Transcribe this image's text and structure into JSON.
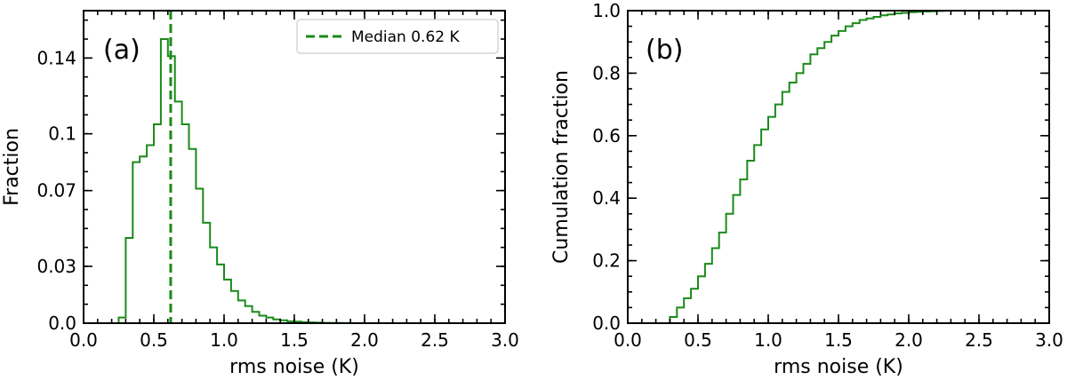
{
  "colors": {
    "series": "#1a8a1a",
    "frame": "#000000",
    "legend_border": "#cccccc"
  },
  "chart_data": [
    {
      "type": "histogram",
      "panel_label": "(a)",
      "xlabel": "rms noise (K)",
      "ylabel": "Fraction",
      "xlim": [
        0.0,
        3.0
      ],
      "ylim": [
        0.0,
        0.165
      ],
      "xticks": [
        0.0,
        0.5,
        1.0,
        1.5,
        2.0,
        2.5,
        3.0
      ],
      "xtick_labels": [
        "0.0",
        "0.5",
        "1.0",
        "1.5",
        "2.0",
        "2.5",
        "3.0"
      ],
      "yticks": [
        0.0,
        0.03,
        0.07,
        0.1,
        0.14
      ],
      "ytick_labels": [
        "0.0",
        "0.03",
        "0.07",
        "0.1",
        "0.14"
      ],
      "bin_width": 0.05,
      "bins_start": 0.25,
      "series": [
        {
          "values": [
            0.003,
            0.045,
            0.085,
            0.088,
            0.094,
            0.105,
            0.15,
            0.141,
            0.117,
            0.105,
            0.092,
            0.071,
            0.053,
            0.04,
            0.031,
            0.023,
            0.017,
            0.012,
            0.009,
            0.006,
            0.004,
            0.003,
            0.002,
            0.0015,
            0.001,
            0.0008,
            0.0005,
            0.0004,
            0.0003,
            0.0002,
            0.0001,
            0.0001,
            5e-05
          ]
        }
      ],
      "reference_lines": [
        {
          "x": 0.62,
          "label": "Median 0.62 K",
          "style": "dashed"
        }
      ],
      "legend": {
        "entries": [
          "Median 0.62 K"
        ],
        "position": "top-right"
      }
    },
    {
      "type": "histogram",
      "cumulative": true,
      "panel_label": "(b)",
      "xlabel": "rms noise (K)",
      "ylabel": "Cumulation fraction",
      "xlim": [
        0.0,
        3.0
      ],
      "ylim": [
        0.0,
        1.0
      ],
      "xticks": [
        0.0,
        0.5,
        1.0,
        1.5,
        2.0,
        2.5,
        3.0
      ],
      "xtick_labels": [
        "0.0",
        "0.5",
        "1.0",
        "1.5",
        "2.0",
        "2.5",
        "3.0"
      ],
      "yticks": [
        0.0,
        0.2,
        0.4,
        0.6,
        0.8,
        1.0
      ],
      "ytick_labels": [
        "0.0",
        "0.2",
        "0.4",
        "0.6",
        "0.8",
        "1.0"
      ],
      "bin_width": 0.05,
      "bins_start": 0.25,
      "series": [
        {
          "values": [
            0.0,
            0.02,
            0.05,
            0.08,
            0.11,
            0.15,
            0.19,
            0.24,
            0.29,
            0.35,
            0.41,
            0.46,
            0.52,
            0.57,
            0.62,
            0.66,
            0.7,
            0.74,
            0.77,
            0.8,
            0.83,
            0.86,
            0.88,
            0.9,
            0.92,
            0.935,
            0.95,
            0.96,
            0.97,
            0.975,
            0.98,
            0.985,
            0.988,
            0.991,
            0.993,
            0.995,
            0.996,
            0.997,
            0.998,
            0.999,
            1.0,
            1.0,
            1.0,
            1.0,
            1.0,
            1.0,
            1.0,
            1.0,
            1.0,
            1.0,
            1.0,
            1.0,
            1.0,
            1.0,
            1.0
          ]
        }
      ]
    }
  ]
}
